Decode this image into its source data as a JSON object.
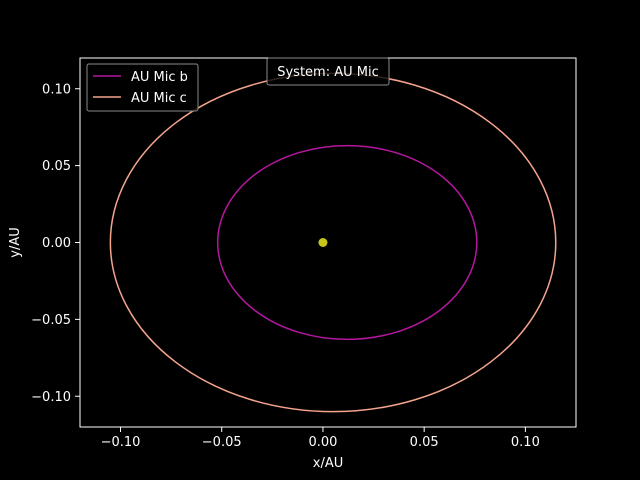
{
  "chart_data": {
    "type": "line",
    "title": "System: AU Mic",
    "xlabel": "x/AU",
    "ylabel": "y/AU",
    "xlim": [
      -0.12,
      0.125
    ],
    "ylim": [
      -0.12,
      0.12
    ],
    "grid": false,
    "legend_position": "upper left",
    "title_position": "inside top center",
    "background_color": "#000000",
    "foreground_color": "#ffffff",
    "x_ticks": [
      -0.1,
      -0.05,
      0.0,
      0.05,
      0.1
    ],
    "y_ticks": [
      -0.1,
      -0.05,
      0.0,
      0.05,
      0.1
    ],
    "x_tick_labels": [
      "−0.10",
      "−0.05",
      "0.00",
      "0.05",
      "0.10"
    ],
    "y_tick_labels": [
      "−0.10",
      "−0.05",
      "0.00",
      "0.05",
      "0.10"
    ],
    "star": {
      "x": 0.0,
      "y": 0.0,
      "color": "#c8c41a"
    },
    "series": [
      {
        "name": "AU Mic b",
        "color": "#b5179e",
        "orbit": {
          "x_min": -0.052,
          "x_max": 0.076,
          "y_min": -0.063,
          "y_max": 0.063
        }
      },
      {
        "name": "AU Mic c",
        "color": "#f4a48c",
        "orbit": {
          "x_min": -0.105,
          "x_max": 0.115,
          "y_min": -0.11,
          "y_max": 0.11
        }
      }
    ]
  }
}
